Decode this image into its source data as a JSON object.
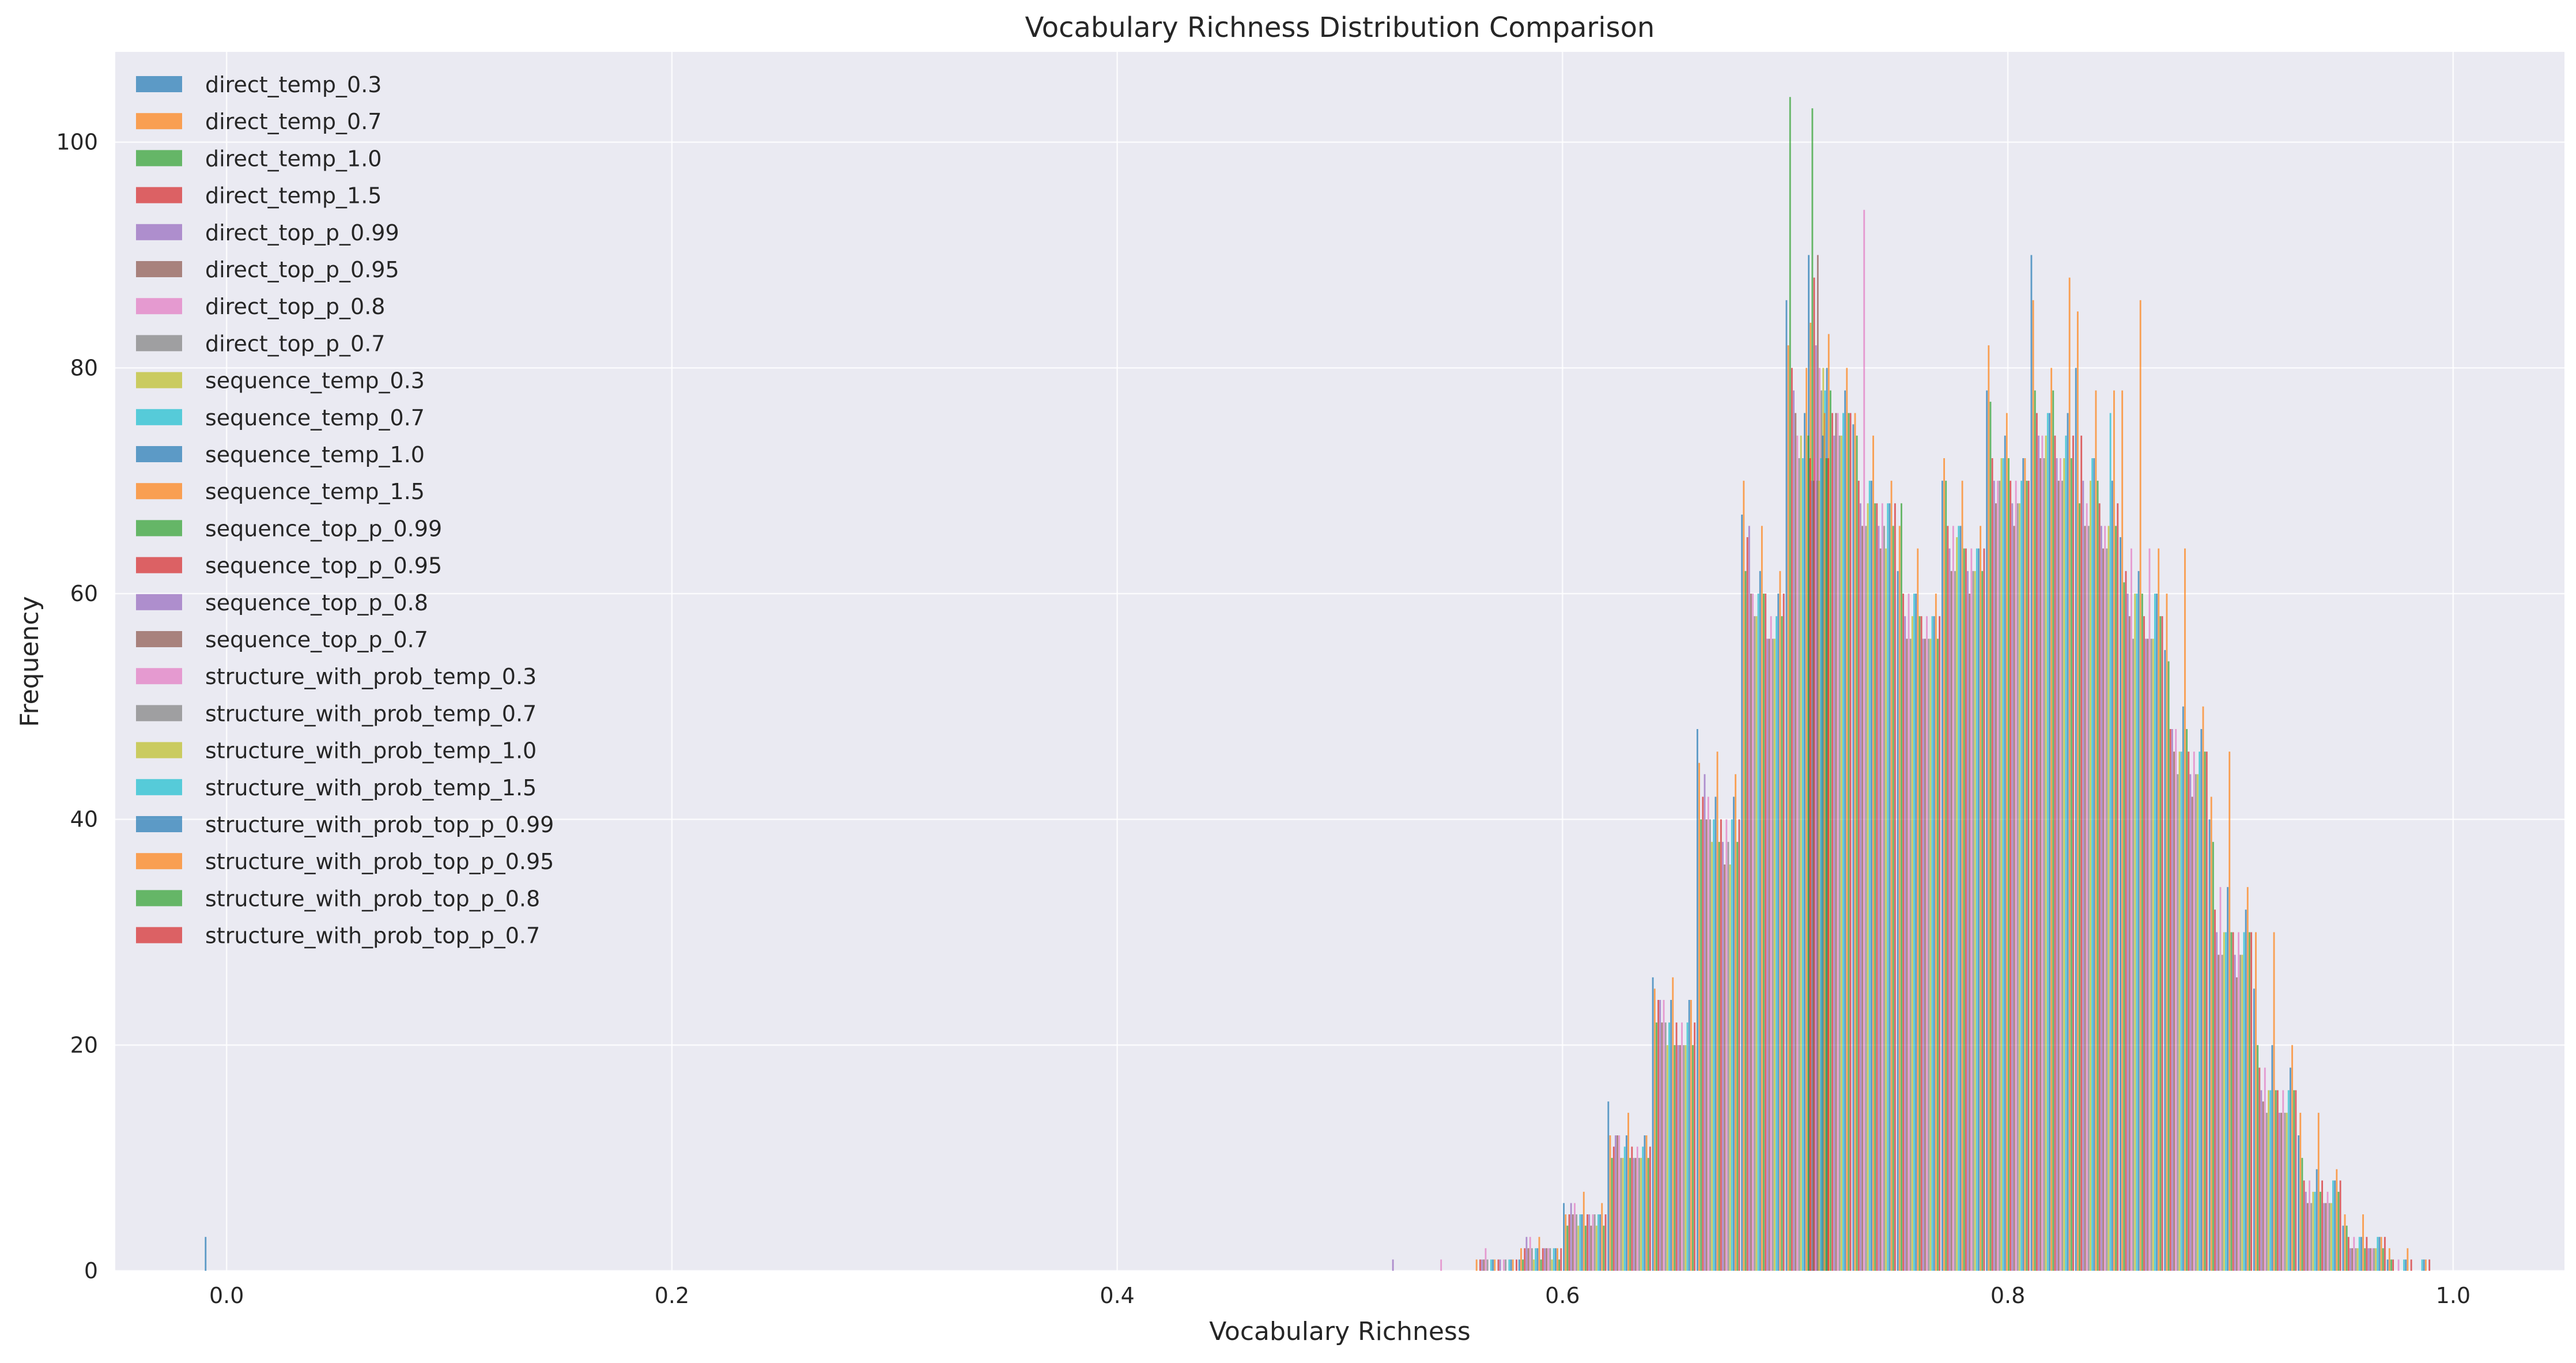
{
  "chart_data": {
    "type": "bar",
    "subtype": "overlaid_histogram",
    "title": "Vocabulary Richness Distribution Comparison",
    "xlabel": "Vocabulary Richness",
    "ylabel": "Frequency",
    "xlim": [
      -0.05,
      1.05
    ],
    "ylim": [
      0,
      108
    ],
    "xticks": [
      0.0,
      0.2,
      0.4,
      0.6,
      0.8,
      1.0
    ],
    "xtick_labels": [
      "0.0",
      "0.2",
      "0.4",
      "0.6",
      "0.8",
      "1.0"
    ],
    "yticks": [
      0,
      20,
      40,
      60,
      80,
      100
    ],
    "ytick_labels": [
      "0",
      "20",
      "40",
      "60",
      "80",
      "100"
    ],
    "grid": true,
    "legend_position": "upper-left",
    "bins": [
      0.0,
      0.53,
      0.55,
      0.57,
      0.59,
      0.61,
      0.63,
      0.65,
      0.67,
      0.69,
      0.71,
      0.72,
      0.74,
      0.76,
      0.78,
      0.8,
      0.82,
      0.84,
      0.86,
      0.88,
      0.9,
      0.92,
      0.94,
      0.96,
      0.98,
      1.0
    ],
    "series": [
      {
        "name": "direct_temp_0.3",
        "color": "#1f77b4",
        "values": [
          3,
          0,
          0,
          0,
          1,
          6,
          15,
          26,
          48,
          67,
          86,
          90,
          75,
          62,
          70,
          78,
          90,
          80,
          65,
          55,
          40,
          25,
          12,
          4,
          1,
          0
        ]
      },
      {
        "name": "direct_temp_0.7",
        "color": "#ff7f0e",
        "values": [
          0,
          0,
          0,
          1,
          2,
          5,
          12,
          25,
          45,
          70,
          82,
          84,
          76,
          66,
          72,
          82,
          86,
          85,
          78,
          60,
          42,
          30,
          14,
          5,
          2,
          0
        ]
      },
      {
        "name": "direct_temp_1.0",
        "color": "#2ca02c",
        "values": [
          0,
          0,
          0,
          0,
          1,
          4,
          10,
          22,
          40,
          62,
          104,
          103,
          74,
          68,
          70,
          77,
          78,
          68,
          61,
          54,
          38,
          20,
          10,
          4,
          1,
          0
        ]
      },
      {
        "name": "direct_temp_1.5",
        "color": "#d62728",
        "values": [
          0,
          0,
          0,
          1,
          2,
          5,
          11,
          24,
          42,
          65,
          80,
          88,
          70,
          60,
          66,
          72,
          76,
          74,
          62,
          48,
          32,
          18,
          8,
          3,
          1,
          0
        ]
      },
      {
        "name": "direct_top_p_0.99",
        "color": "#9467bd",
        "values": [
          0,
          1,
          0,
          1,
          3,
          6,
          12,
          24,
          44,
          66,
          78,
          82,
          68,
          58,
          64,
          70,
          74,
          70,
          60,
          48,
          30,
          16,
          7,
          2,
          0,
          0
        ]
      },
      {
        "name": "direct_top_p_0.95",
        "color": "#8c564b",
        "values": [
          0,
          0,
          0,
          1,
          2,
          5,
          12,
          22,
          40,
          60,
          76,
          90,
          66,
          56,
          62,
          68,
          72,
          66,
          58,
          46,
          28,
          15,
          6,
          2,
          0,
          0
        ]
      },
      {
        "name": "direct_top_p_0.8",
        "color": "#e377c2",
        "values": [
          0,
          0,
          1,
          2,
          3,
          6,
          12,
          24,
          42,
          60,
          74,
          80,
          94,
          60,
          66,
          70,
          74,
          68,
          64,
          48,
          34,
          18,
          8,
          3,
          1,
          0
        ]
      },
      {
        "name": "direct_top_p_0.7",
        "color": "#7f7f7f",
        "values": [
          0,
          0,
          0,
          1,
          2,
          5,
          10,
          22,
          40,
          58,
          72,
          78,
          66,
          56,
          62,
          70,
          72,
          66,
          56,
          44,
          28,
          14,
          6,
          2,
          0,
          0
        ]
      },
      {
        "name": "sequence_temp_0.3",
        "color": "#bcbd22",
        "values": [
          0,
          0,
          0,
          0,
          1,
          4,
          10,
          20,
          38,
          58,
          74,
          80,
          68,
          58,
          65,
          72,
          74,
          70,
          60,
          46,
          30,
          16,
          7,
          2,
          0,
          0
        ]
      },
      {
        "name": "sequence_temp_0.7",
        "color": "#17becf",
        "values": [
          0,
          0,
          0,
          1,
          2,
          5,
          11,
          22,
          40,
          60,
          72,
          78,
          70,
          60,
          66,
          72,
          76,
          72,
          60,
          46,
          30,
          16,
          7,
          3,
          1,
          0
        ]
      },
      {
        "name": "sequence_temp_1.0",
        "color": "#1f77b4",
        "values": [
          0,
          0,
          0,
          1,
          2,
          5,
          12,
          24,
          42,
          62,
          76,
          80,
          70,
          60,
          66,
          74,
          76,
          72,
          62,
          50,
          34,
          20,
          9,
          3,
          1,
          0
        ]
      },
      {
        "name": "sequence_temp_1.5",
        "color": "#ff7f0e",
        "values": [
          0,
          0,
          0,
          1,
          3,
          7,
          14,
          26,
          46,
          66,
          80,
          83,
          74,
          64,
          70,
          76,
          80,
          78,
          86,
          64,
          46,
          30,
          14,
          5,
          2,
          0
        ]
      },
      {
        "name": "sequence_top_p_0.99",
        "color": "#2ca02c",
        "values": [
          0,
          0,
          0,
          0,
          1,
          4,
          10,
          20,
          38,
          60,
          74,
          78,
          68,
          58,
          64,
          72,
          78,
          70,
          60,
          48,
          30,
          16,
          7,
          2,
          0,
          0
        ]
      },
      {
        "name": "sequence_top_p_0.95",
        "color": "#d62728",
        "values": [
          0,
          0,
          0,
          1,
          2,
          5,
          11,
          22,
          40,
          60,
          72,
          76,
          68,
          58,
          64,
          70,
          74,
          68,
          58,
          46,
          30,
          16,
          8,
          3,
          1,
          0
        ]
      },
      {
        "name": "sequence_top_p_0.8",
        "color": "#9467bd",
        "values": [
          0,
          0,
          0,
          1,
          2,
          5,
          10,
          20,
          38,
          56,
          70,
          74,
          66,
          56,
          62,
          68,
          72,
          66,
          56,
          44,
          28,
          14,
          6,
          2,
          0,
          0
        ]
      },
      {
        "name": "sequence_top_p_0.7",
        "color": "#8c564b",
        "values": [
          0,
          0,
          0,
          0,
          2,
          4,
          10,
          20,
          36,
          56,
          70,
          76,
          64,
          56,
          60,
          66,
          70,
          64,
          56,
          42,
          26,
          14,
          6,
          2,
          0,
          0
        ]
      },
      {
        "name": "structure_with_prob_temp_0.3",
        "color": "#e377c2",
        "values": [
          0,
          0,
          0,
          1,
          2,
          5,
          11,
          22,
          40,
          58,
          72,
          76,
          68,
          58,
          64,
          70,
          72,
          66,
          64,
          46,
          30,
          16,
          7,
          2,
          0,
          0
        ]
      },
      {
        "name": "structure_with_prob_temp_0.7",
        "color": "#7f7f7f",
        "values": [
          0,
          0,
          0,
          1,
          2,
          5,
          10,
          20,
          38,
          56,
          70,
          74,
          66,
          56,
          62,
          68,
          70,
          64,
          56,
          44,
          28,
          14,
          6,
          2,
          0,
          0
        ]
      },
      {
        "name": "structure_with_prob_temp_1.0",
        "color": "#bcbd22",
        "values": [
          0,
          0,
          0,
          0,
          1,
          4,
          10,
          20,
          36,
          56,
          70,
          74,
          64,
          56,
          62,
          68,
          72,
          66,
          56,
          44,
          28,
          14,
          6,
          2,
          0,
          0
        ]
      },
      {
        "name": "structure_with_prob_temp_1.5",
        "color": "#17becf",
        "values": [
          0,
          0,
          0,
          1,
          2,
          5,
          11,
          22,
          40,
          58,
          72,
          76,
          68,
          58,
          64,
          70,
          74,
          76,
          60,
          46,
          30,
          16,
          8,
          3,
          1,
          0
        ]
      },
      {
        "name": "structure_with_prob_top_p_0.99",
        "color": "#1f77b4",
        "values": [
          0,
          0,
          0,
          1,
          2,
          5,
          12,
          24,
          42,
          60,
          74,
          78,
          68,
          58,
          64,
          72,
          76,
          70,
          60,
          48,
          32,
          18,
          8,
          3,
          1,
          0
        ]
      },
      {
        "name": "structure_with_prob_top_p_0.95",
        "color": "#ff7f0e",
        "values": [
          0,
          0,
          0,
          1,
          2,
          6,
          12,
          24,
          44,
          62,
          76,
          80,
          70,
          60,
          66,
          72,
          88,
          78,
          64,
          50,
          34,
          20,
          9,
          3,
          1,
          0
        ]
      },
      {
        "name": "structure_with_prob_top_p_0.8",
        "color": "#2ca02c",
        "values": [
          0,
          0,
          0,
          0,
          1,
          4,
          10,
          20,
          38,
          58,
          72,
          76,
          66,
          56,
          62,
          70,
          72,
          66,
          58,
          46,
          30,
          16,
          7,
          2,
          0,
          0
        ]
      },
      {
        "name": "structure_with_prob_top_p_0.7",
        "color": "#d62728",
        "values": [
          0,
          0,
          0,
          1,
          2,
          5,
          11,
          22,
          40,
          60,
          72,
          76,
          68,
          58,
          64,
          70,
          74,
          68,
          58,
          46,
          30,
          16,
          8,
          3,
          1,
          0
        ]
      }
    ]
  }
}
